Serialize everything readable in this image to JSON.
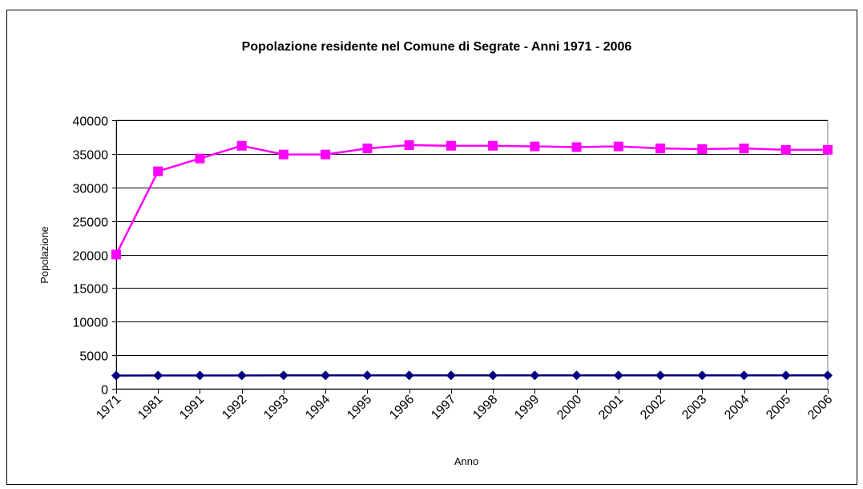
{
  "chart_data": {
    "type": "line",
    "title": "Popolazione residente nel Comune di Segrate - Anni 1971 - 2006",
    "xlabel": "Anno",
    "ylabel": "Popolazione",
    "categories": [
      "1971",
      "1981",
      "1991",
      "1992",
      "1993",
      "1994",
      "1995",
      "1996",
      "1997",
      "1998",
      "1999",
      "2000",
      "2001",
      "2002",
      "2003",
      "2004",
      "2005",
      "2006"
    ],
    "series": [
      {
        "color": "#000080",
        "marker": "diamond",
        "values": [
          1971,
          1981,
          1991,
          1992,
          1993,
          1994,
          1995,
          1996,
          1997,
          1998,
          1999,
          2000,
          2001,
          2002,
          2003,
          2004,
          2005,
          2006
        ]
      },
      {
        "color": "#ff00ff",
        "marker": "square",
        "values": [
          20000,
          32400,
          34300,
          36200,
          34900,
          34900,
          35800,
          36300,
          36200,
          36200,
          36100,
          36000,
          36100,
          35800,
          35700,
          35800,
          35600,
          35600
        ]
      }
    ],
    "ylim": [
      0,
      40000
    ],
    "yticks": [
      0,
      5000,
      10000,
      15000,
      20000,
      25000,
      30000,
      35000,
      40000
    ],
    "grid": true
  }
}
